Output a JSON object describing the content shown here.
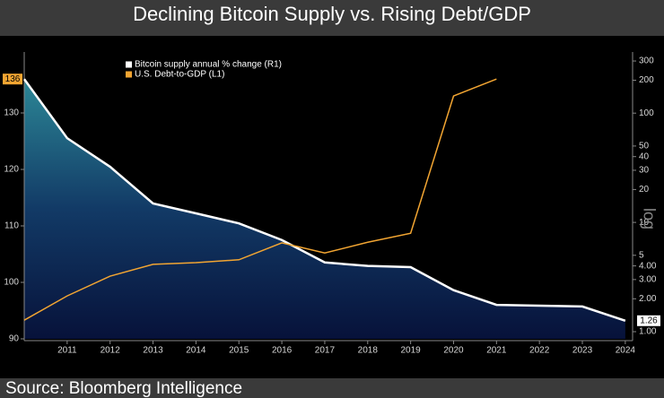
{
  "chart_data": {
    "type": "line",
    "title": "Declining Bitcoin Supply vs. Rising Debt/GDP",
    "source": "Source: Bloomberg Intelligence",
    "y2_label": "log",
    "x": [
      2010,
      2011,
      2012,
      2013,
      2014,
      2015,
      2016,
      2017,
      2018,
      2019,
      2020,
      2021,
      2022,
      2023,
      2024
    ],
    "xlim": [
      2010,
      2024.17
    ],
    "xticks": [
      2011,
      2012,
      2013,
      2014,
      2015,
      2016,
      2017,
      2018,
      2019,
      2020,
      2021,
      2022,
      2023,
      2024
    ],
    "ylim": [
      90,
      140
    ],
    "yticks": [
      90,
      100,
      110,
      120,
      130
    ],
    "y2lim": [
      0.86,
      330
    ],
    "y2log": true,
    "y2ticks": [
      300,
      200,
      100,
      50,
      40,
      30,
      20,
      10,
      5,
      {
        "value": 4,
        "label": "4.00"
      },
      {
        "value": 3,
        "label": "3.00"
      },
      {
        "value": 2,
        "label": "2.00"
      },
      {
        "value": 1,
        "label": "1.00"
      }
    ],
    "series": [
      {
        "name": "Bitcoin supply annual % change (R1)",
        "color": "#ffffff",
        "axis": "y2",
        "area": true,
        "values": [
          205,
          59,
          32.3,
          14.9,
          12.1,
          9.8,
          6.9,
          4.3,
          4.0,
          3.9,
          2.4,
          1.76,
          1.73,
          1.7,
          1.26
        ]
      },
      {
        "name": "U.S. Debt-to-GDP (L1)",
        "color": "#f2a532",
        "values": [
          93.3,
          97.6,
          101.1,
          103.2,
          103.5,
          104.0,
          107.0,
          105.2,
          107.1,
          108.7,
          133.0,
          136,
          null,
          null,
          null
        ]
      }
    ]
  }
}
